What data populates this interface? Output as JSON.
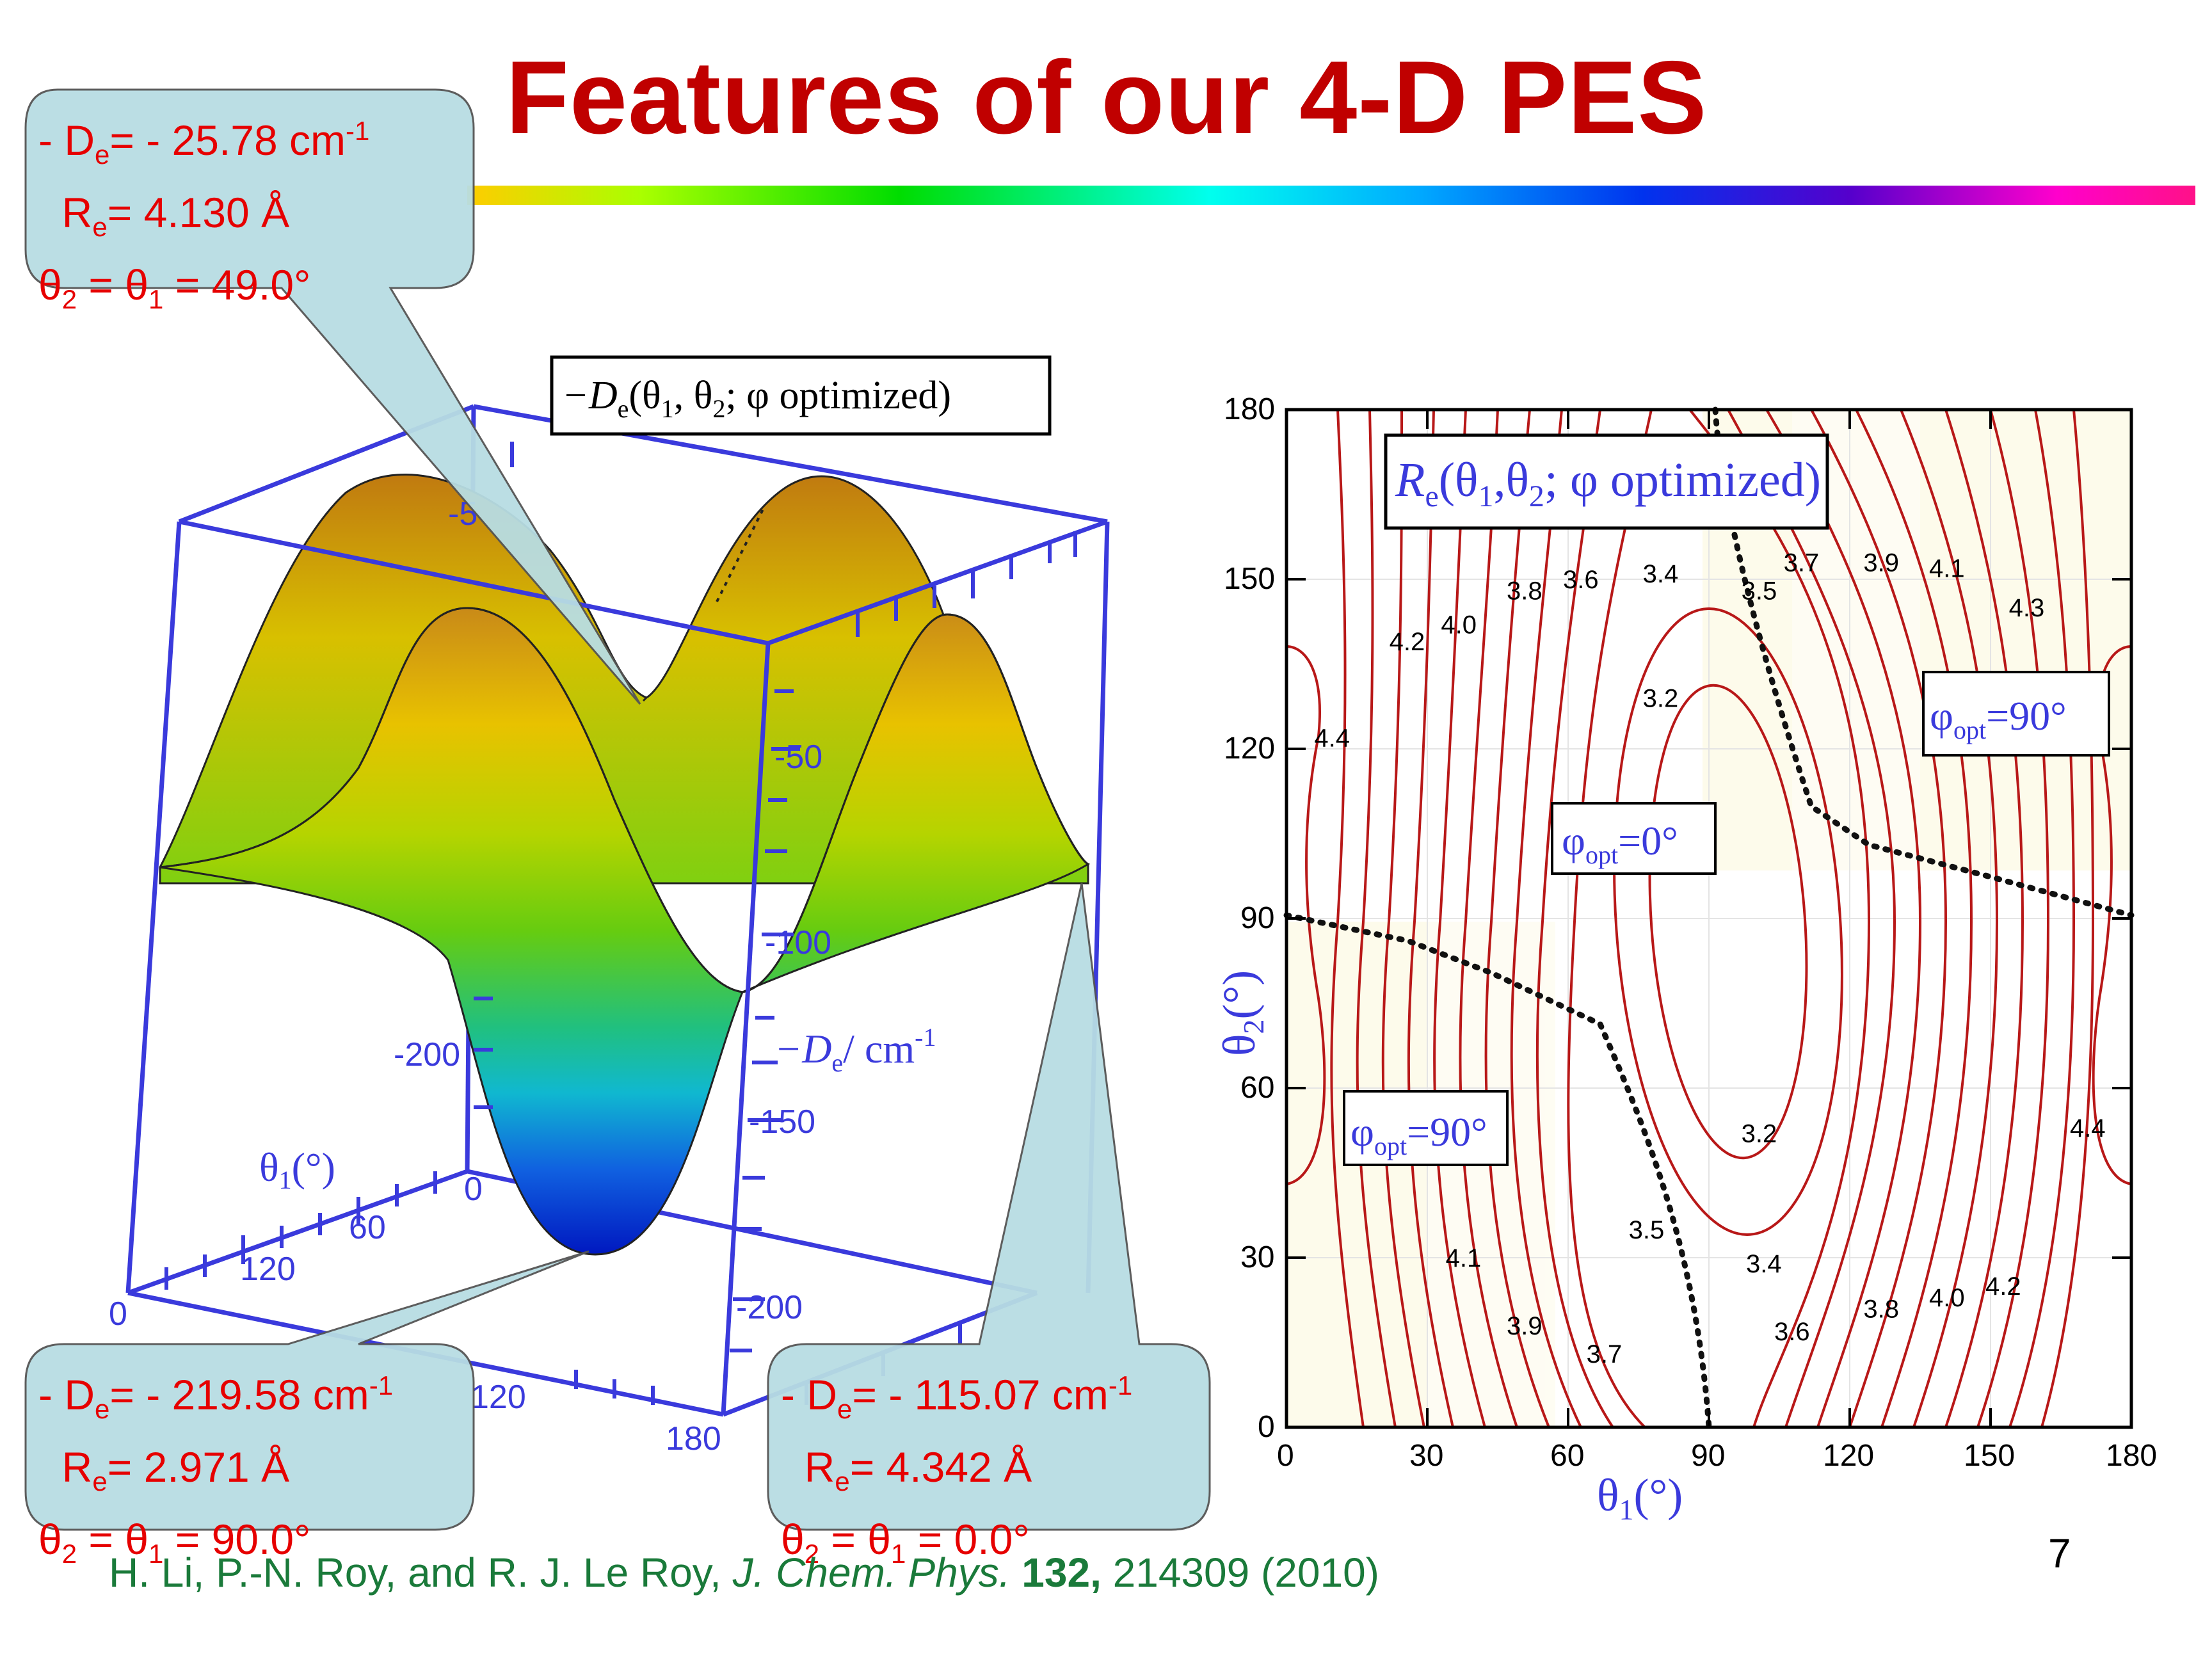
{
  "slide": {
    "title": "Features of our 4-D PES",
    "page_number": "7"
  },
  "callouts": {
    "top": {
      "de_value": "- 25.78 cm",
      "re_value": "4.130 Å",
      "theta_value": "49.0°"
    },
    "bottom_left": {
      "de_value": "- 219.58 cm",
      "re_value": "2.971 Å",
      "theta_value": "90.0°"
    },
    "bottom_right": {
      "de_value": "- 115.07 cm",
      "re_value": "4.342 Å",
      "theta_value": "0.0°"
    }
  },
  "surface_plot": {
    "title_prefix": "−D",
    "title_rest": "(θ",
    "title_mid": ", θ",
    "title_end": "; φ optimized)",
    "axis_label_z": "−D",
    "axis_label_z_unit": "/ cm",
    "axis_label_theta1": "θ",
    "z_ticks_front": [
      "-50",
      "-100",
      "-150",
      "-200"
    ],
    "z_ticks_back": [
      "-5",
      "-200"
    ],
    "theta1_ticks": [
      "0",
      "60",
      "120"
    ],
    "theta2_ticks": [
      "0",
      "120",
      "180"
    ]
  },
  "contour_plot": {
    "title": "R",
    "title_rest": "(θ",
    "title_mid": ",θ",
    "title_end": "; φ optimized)",
    "x_label": "θ",
    "y_label": "θ",
    "x_ticks": [
      "0",
      "30",
      "60",
      "90",
      "120",
      "150",
      "180"
    ],
    "y_ticks": [
      "0",
      "30",
      "60",
      "90",
      "120",
      "150",
      "180"
    ],
    "region_label_center": "=0°",
    "region_label_right": "=90°",
    "region_label_left": "=90°",
    "contour_labels": [
      {
        "text": "4.2",
        "x": 26,
        "y": 139
      },
      {
        "text": "4.0",
        "x": 37,
        "y": 142
      },
      {
        "text": "3.8",
        "x": 51,
        "y": 148
      },
      {
        "text": "3.6",
        "x": 63,
        "y": 150
      },
      {
        "text": "3.4",
        "x": 80,
        "y": 151
      },
      {
        "text": "3.5",
        "x": 101,
        "y": 148
      },
      {
        "text": "3.7",
        "x": 110,
        "y": 153
      },
      {
        "text": "3.9",
        "x": 127,
        "y": 153
      },
      {
        "text": "4.1",
        "x": 141,
        "y": 152
      },
      {
        "text": "4.3",
        "x": 158,
        "y": 145
      },
      {
        "text": "3.2",
        "x": 80,
        "y": 129
      },
      {
        "text": "4.4",
        "x": 10,
        "y": 122
      },
      {
        "text": "3.2",
        "x": 101,
        "y": 52
      },
      {
        "text": "4.4",
        "x": 171,
        "y": 53
      },
      {
        "text": "3.5",
        "x": 77,
        "y": 35
      },
      {
        "text": "3.4",
        "x": 102,
        "y": 29
      },
      {
        "text": "4.1",
        "x": 38,
        "y": 30
      },
      {
        "text": "3.9",
        "x": 51,
        "y": 18
      },
      {
        "text": "3.7",
        "x": 68,
        "y": 13
      },
      {
        "text": "3.6",
        "x": 108,
        "y": 17
      },
      {
        "text": "3.8",
        "x": 127,
        "y": 21
      },
      {
        "text": "4.0",
        "x": 141,
        "y": 23
      },
      {
        "text": "4.2",
        "x": 153,
        "y": 25
      }
    ]
  },
  "citation": {
    "authors": "H. Li, P.-N. Roy, and R. J. Le Roy, ",
    "journal": "J. Chem. Phys.",
    "volume": "132,",
    "rest": " 214309 (2010)"
  }
}
